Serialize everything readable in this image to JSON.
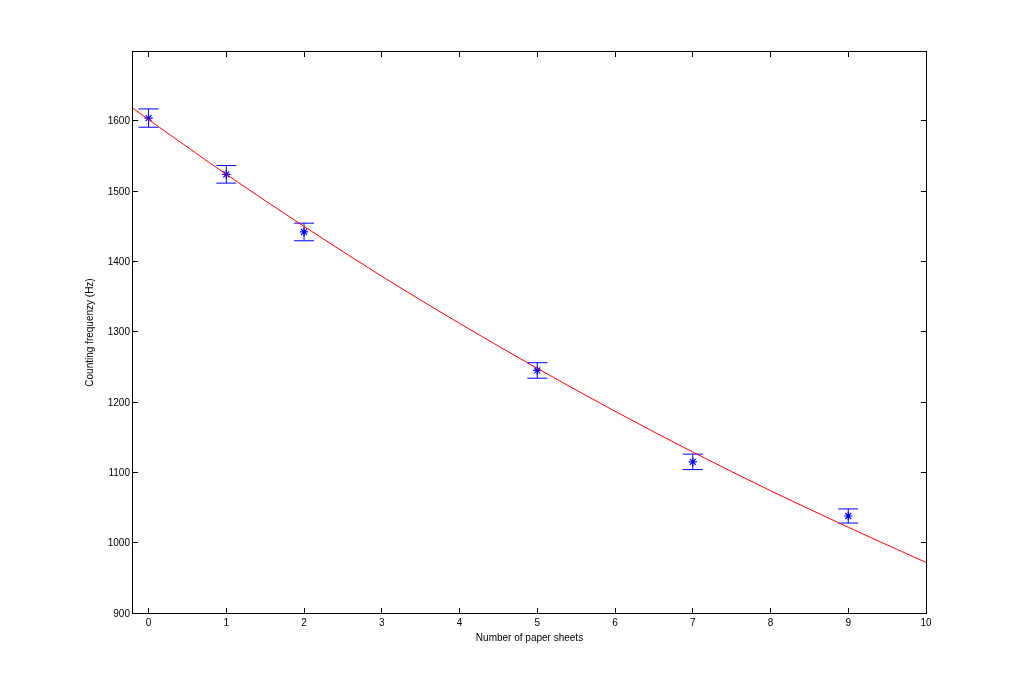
{
  "chart_data": {
    "type": "scatter",
    "xlabel": "Number of paper sheets",
    "ylabel": "Counting frequenzy (Hz)",
    "xlim": [
      -0.2,
      10
    ],
    "xticks": [
      0,
      1,
      2,
      3,
      4,
      5,
      6,
      7,
      8,
      9,
      10
    ],
    "ylim": [
      900,
      1698
    ],
    "yticks": [
      900,
      1000,
      1100,
      1200,
      1300,
      1400,
      1500,
      1600
    ],
    "grid": false,
    "marker": "cross",
    "series": [
      {
        "color": "#0000ff",
        "x": [
          0,
          1,
          2,
          5,
          7,
          9
        ],
        "values": [
          1604,
          1524,
          1442,
          1245,
          1115,
          1038
        ],
        "errors": [
          13,
          12.5,
          12.5,
          11,
          11,
          10
        ]
      },
      {
        "type": "line",
        "marker": "none",
        "color": "#ff0000",
        "line_style": "solid",
        "x": [
          -0.2,
          0,
          1,
          2,
          3,
          4,
          5,
          6,
          7,
          8,
          9,
          10
        ],
        "values": [
          1618,
          1602,
          1524,
          1450,
          1379,
          1312,
          1248,
          1187,
          1129,
          1074,
          1022,
          972
        ]
      }
    ]
  }
}
